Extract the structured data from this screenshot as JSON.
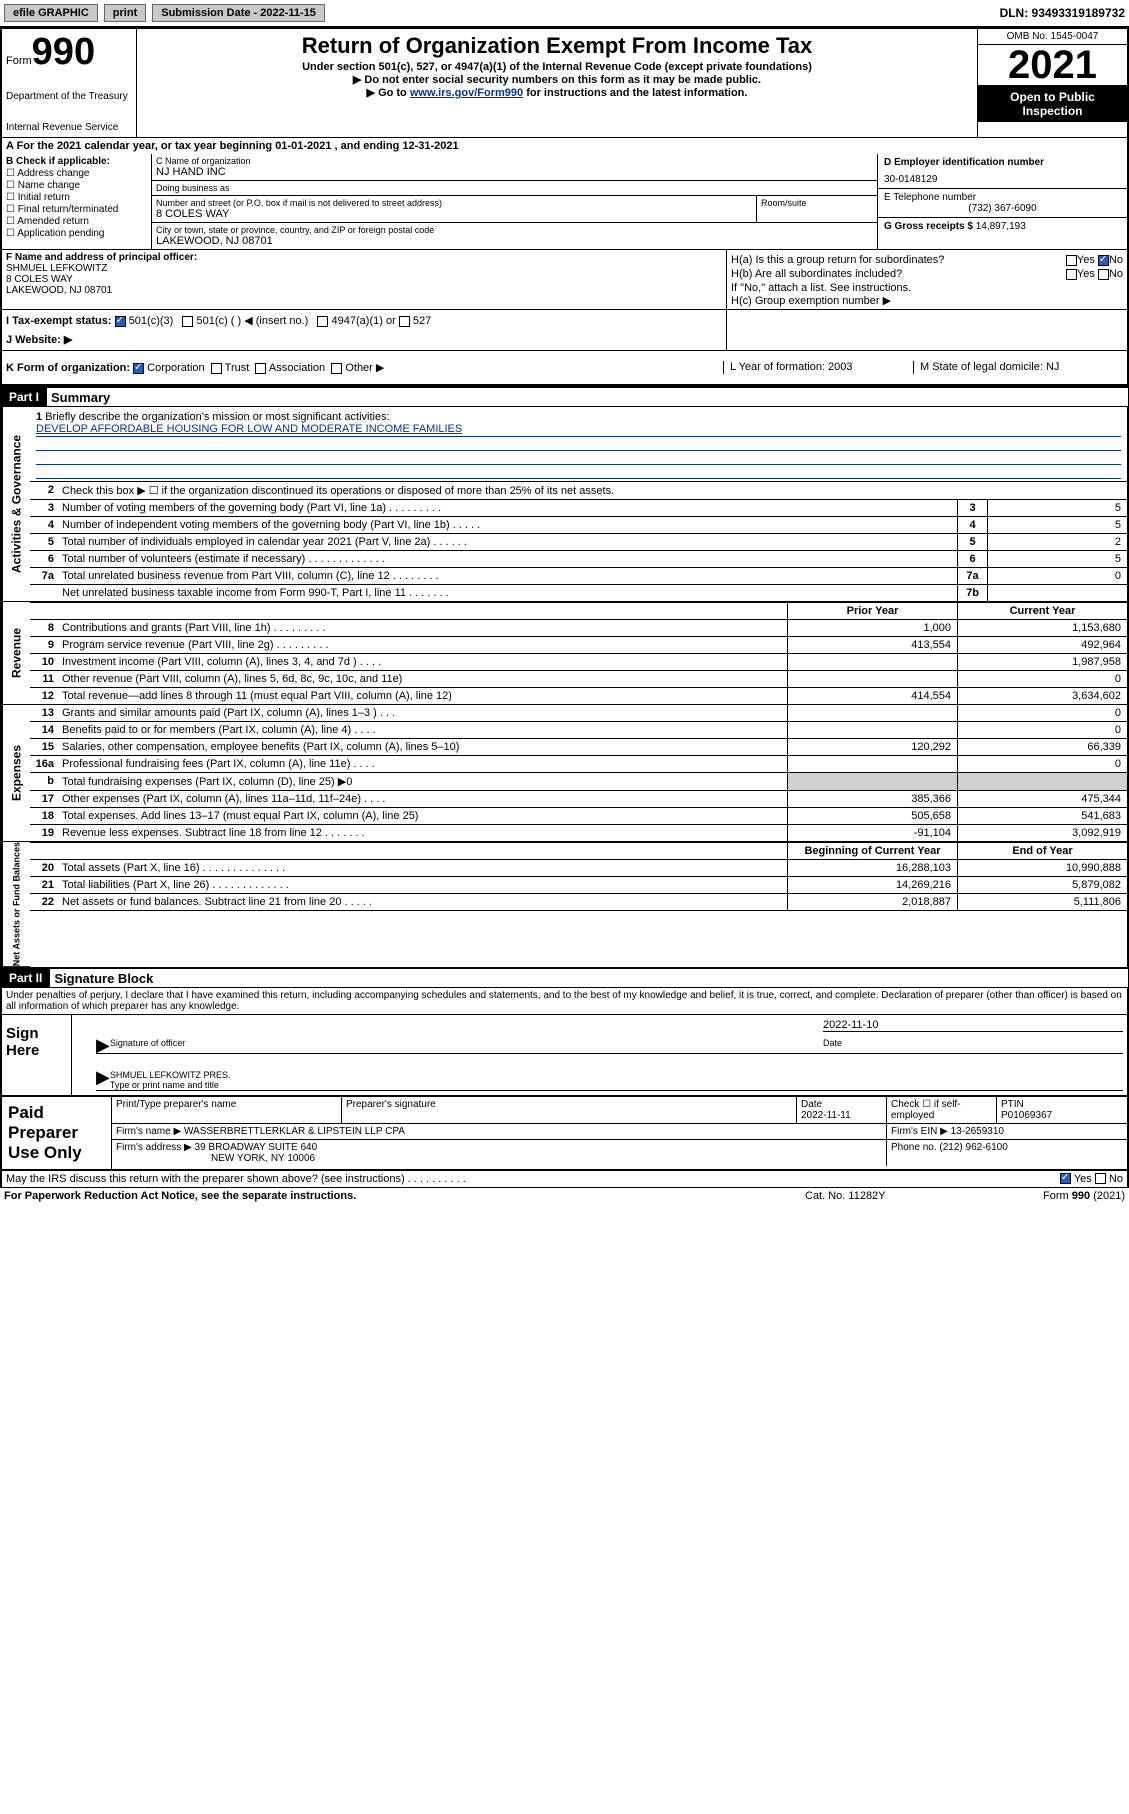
{
  "topbar": {
    "efile": "efile GRAPHIC",
    "print": "print",
    "submission_label": "Submission Date - 2022-11-15",
    "dln": "DLN: 93493319189732"
  },
  "header": {
    "form_label": "Form",
    "form_number": "990",
    "dept": "Department of the Treasury",
    "irs": "Internal Revenue Service",
    "title": "Return of Organization Exempt From Income Tax",
    "subtitle1": "Under section 501(c), 527, or 4947(a)(1) of the Internal Revenue Code (except private foundations)",
    "subtitle2": "▶ Do not enter social security numbers on this form as it may be made public.",
    "subtitle3_pre": "▶ Go to ",
    "subtitle3_link": "www.irs.gov/Form990",
    "subtitle3_post": " for instructions and the latest information.",
    "omb": "OMB No. 1545-0047",
    "year": "2021",
    "open": "Open to Public Inspection"
  },
  "secA": "A For the 2021 calendar year, or tax year beginning 01-01-2021   , and ending 12-31-2021",
  "B": {
    "label": "B Check if applicable:",
    "opts": [
      "Address change",
      "Name change",
      "Initial return",
      "Final return/terminated",
      "Amended return",
      "Application pending"
    ]
  },
  "C": {
    "name_label": "C Name of organization",
    "name": "NJ HAND INC",
    "dba_label": "Doing business as",
    "dba": "",
    "street_label": "Number and street (or P.O. box if mail is not delivered to street address)",
    "street": "8 COLES WAY",
    "room_label": "Room/suite",
    "city_label": "City or town, state or province, country, and ZIP or foreign postal code",
    "city": "LAKEWOOD, NJ  08701"
  },
  "D": {
    "label": "D Employer identification number",
    "ein": "30-0148129",
    "phone_label": "E Telephone number",
    "phone": "(732) 367-6090",
    "gross_label": "G Gross receipts $",
    "gross": "14,897,193"
  },
  "F": {
    "label": "F  Name and address of principal officer:",
    "name": "SHMUEL LEFKOWITZ",
    "addr1": "8 COLES WAY",
    "addr2": "LAKEWOOD, NJ  08701"
  },
  "H": {
    "a": "H(a)  Is this a group return for subordinates?",
    "a_yes": "Yes",
    "a_no": "No",
    "b": "H(b)  Are all subordinates included?",
    "b_note": "If \"No,\" attach a list. See instructions.",
    "c": "H(c)  Group exemption number ▶"
  },
  "I": {
    "label": "I   Tax-exempt status:",
    "o1": "501(c)(3)",
    "o2": "501(c) (   ) ◀ (insert no.)",
    "o3": "4947(a)(1) or",
    "o4": "527"
  },
  "J": {
    "label": "J   Website: ▶"
  },
  "K": {
    "label": "K Form of organization:",
    "opts": [
      "Corporation",
      "Trust",
      "Association",
      "Other ▶"
    ],
    "L": "L Year of formation: 2003",
    "M": "M State of legal domicile: NJ"
  },
  "partI": {
    "hdr": "Part I",
    "title": "Summary"
  },
  "summary": {
    "q1": "Briefly describe the organization's mission or most significant activities:",
    "mission": "DEVELOP AFFORDABLE HOUSING FOR LOW AND MODERATE INCOME FAMILIES",
    "q2": "Check this box ▶ ☐  if the organization discontinued its operations or disposed of more than 25% of its net assets.",
    "rows_ag": [
      {
        "n": "3",
        "t": "Number of voting members of the governing body (Part VI, line 1a)   .    .    .    .    .    .    .    .    .",
        "b": "3",
        "v": "5"
      },
      {
        "n": "4",
        "t": "Number of independent voting members of the governing body (Part VI, line 1b)  .    .    .    .    .",
        "b": "4",
        "v": "5"
      },
      {
        "n": "5",
        "t": "Total number of individuals employed in calendar year 2021 (Part V, line 2a)   .    .    .    .    .    .",
        "b": "5",
        "v": "2"
      },
      {
        "n": "6",
        "t": "Total number of volunteers (estimate if necessary)   .    .    .    .    .    .    .    .    .    .    .    .    .",
        "b": "6",
        "v": "5"
      },
      {
        "n": "7a",
        "t": "Total unrelated business revenue from Part VIII, column (C), line 12   .    .    .    .    .    .    .    .",
        "b": "7a",
        "v": "0"
      },
      {
        "n": "",
        "t": "Net unrelated business taxable income from Form 990-T, Part I, line 11   .    .    .    .    .    .    .",
        "b": "7b",
        "v": ""
      }
    ],
    "col_prior": "Prior Year",
    "col_current": "Current Year",
    "rows_rev": [
      {
        "n": "8",
        "t": "Contributions and grants (Part VIII, line 1h)   .    .    .    .    .    .    .    .    .",
        "p": "1,000",
        "c": "1,153,680"
      },
      {
        "n": "9",
        "t": "Program service revenue (Part VIII, line 2g)   .    .    .    .    .    .    .    .    .",
        "p": "413,554",
        "c": "492,964"
      },
      {
        "n": "10",
        "t": "Investment income (Part VIII, column (A), lines 3, 4, and 7d )   .    .    .    .",
        "p": "",
        "c": "1,987,958"
      },
      {
        "n": "11",
        "t": "Other revenue (Part VIII, column (A), lines 5, 6d, 8c, 9c, 10c, and 11e)",
        "p": "",
        "c": "0"
      },
      {
        "n": "12",
        "t": "Total revenue—add lines 8 through 11 (must equal Part VIII, column (A), line 12)",
        "p": "414,554",
        "c": "3,634,602"
      }
    ],
    "rows_exp": [
      {
        "n": "13",
        "t": "Grants and similar amounts paid (Part IX, column (A), lines 1–3 )   .    .    .",
        "p": "",
        "c": "0"
      },
      {
        "n": "14",
        "t": "Benefits paid to or for members (Part IX, column (A), line 4)   .    .    .    .",
        "p": "",
        "c": "0"
      },
      {
        "n": "15",
        "t": "Salaries, other compensation, employee benefits (Part IX, column (A), lines 5–10)",
        "p": "120,292",
        "c": "66,339"
      },
      {
        "n": "16a",
        "t": "Professional fundraising fees (Part IX, column (A), line 11e)   .    .    .    .",
        "p": "",
        "c": "0"
      },
      {
        "n": "b",
        "t": "Total fundraising expenses (Part IX, column (D), line 25) ▶0",
        "p": "grey",
        "c": "grey"
      },
      {
        "n": "17",
        "t": "Other expenses (Part IX, column (A), lines 11a–11d, 11f–24e)   .    .    .    .",
        "p": "385,366",
        "c": "475,344"
      },
      {
        "n": "18",
        "t": "Total expenses. Add lines 13–17 (must equal Part IX, column (A), line 25)",
        "p": "505,658",
        "c": "541,683"
      },
      {
        "n": "19",
        "t": "Revenue less expenses. Subtract line 18 from line 12   .    .    .    .    .    .    .",
        "p": "-91,104",
        "c": "3,092,919"
      }
    ],
    "col_boy": "Beginning of Current Year",
    "col_eoy": "End of Year",
    "rows_na": [
      {
        "n": "20",
        "t": "Total assets (Part X, line 16)   .    .    .    .    .    .    .    .    .    .    .    .    .    .",
        "p": "16,288,103",
        "c": "10,990,888"
      },
      {
        "n": "21",
        "t": "Total liabilities (Part X, line 26)   .    .    .    .    .    .    .    .    .    .    .    .    .",
        "p": "14,269,216",
        "c": "5,879,082"
      },
      {
        "n": "22",
        "t": "Net assets or fund balances. Subtract line 21 from line 20   .    .    .    .    .",
        "p": "2,018,887",
        "c": "5,111,806"
      }
    ]
  },
  "vlabels": {
    "ag": "Activities & Governance",
    "rev": "Revenue",
    "exp": "Expenses",
    "na": "Net Assets or Fund Balances"
  },
  "partII": {
    "hdr": "Part II",
    "title": "Signature Block"
  },
  "sig": {
    "decl": "Under penalties of perjury, I declare that I have examined this return, including accompanying schedules and statements, and to the best of my knowledge and belief, it is true, correct, and complete. Declaration of preparer (other than officer) is based on all information of which preparer has any knowledge.",
    "sign_here": "Sign Here",
    "sig_officer": "Signature of officer",
    "date_label": "Date",
    "date_val": "2022-11-10",
    "name": "SHMUEL LEFKOWITZ PRES.",
    "name_label": "Type or print name and title"
  },
  "pp": {
    "label": "Paid Preparer Use Only",
    "c1": "Print/Type preparer's name",
    "c2": "Preparer's signature",
    "c3_label": "Date",
    "c3": "2022-11-11",
    "c4": "Check ☐ if self-employed",
    "c5_label": "PTIN",
    "c5": "P01069367",
    "firm_name_label": "Firm's name      ▶",
    "firm_name": "WASSERBRETTLERKLAR & LIPSTEIN LLP CPA",
    "firm_ein_label": "Firm's EIN ▶",
    "firm_ein": "13-2659310",
    "firm_addr_label": "Firm's address ▶",
    "firm_addr1": "39 BROADWAY SUITE 640",
    "firm_addr2": "NEW YORK, NY  10006",
    "phone_label": "Phone no.",
    "phone": "(212) 962-6100"
  },
  "discuss": {
    "q": "May the IRS discuss this return with the preparer shown above? (see instructions)   .    .    .    .    .    .    .    .    .    .",
    "yes": "Yes",
    "no": "No"
  },
  "footer": {
    "l": "For Paperwork Reduction Act Notice, see the separate instructions.",
    "m": "Cat. No. 11282Y",
    "r_pre": "Form ",
    "r_b": "990",
    "r_post": " (2021)"
  },
  "colors": {
    "link": "#003399",
    "black": "#000000",
    "grey": "#d0d0d0",
    "btn": "#c8c8c8",
    "check_blue": "#2060c0"
  },
  "fonts": {
    "base_pt": 11,
    "title_pt": 22,
    "year_pt": 40,
    "form_num_pt": 38
  }
}
